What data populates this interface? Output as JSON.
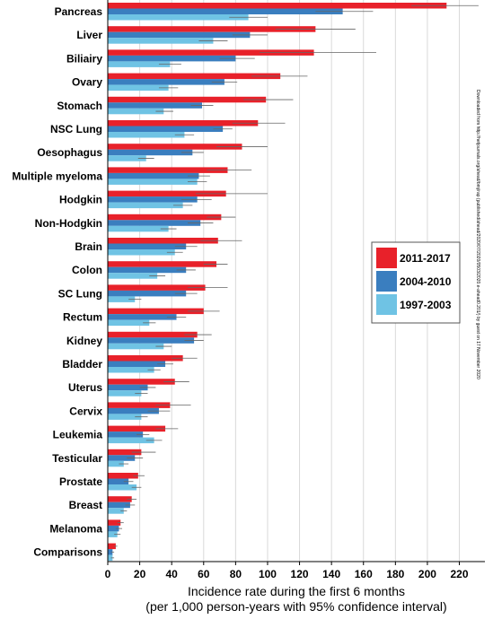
{
  "chart_data": {
    "type": "bar",
    "orientation": "horizontal",
    "categories": [
      "Pancreas",
      "Liver",
      "Biliairy",
      "Ovary",
      "Stomach",
      "NSC Lung",
      "Oesophagus",
      "Multiple myeloma",
      "Hodgkin",
      "Non-Hodgkin",
      "Brain",
      "Colon",
      "SC Lung",
      "Rectum",
      "Kidney",
      "Bladder",
      "Uterus",
      "Cervix",
      "Leukemia",
      "Testicular",
      "Prostate",
      "Breast",
      "Melanoma",
      "Comparisons"
    ],
    "series": [
      {
        "name": "2011-2017",
        "color": "#e8212a",
        "values": [
          212,
          130,
          129,
          108,
          99,
          94,
          84,
          75,
          74,
          71,
          69,
          68,
          61,
          60,
          56,
          47,
          42,
          39,
          36,
          21,
          19,
          15,
          8,
          5
        ],
        "ci_low": [
          190,
          105,
          95,
          90,
          85,
          78,
          68,
          62,
          55,
          62,
          58,
          60,
          50,
          50,
          48,
          40,
          35,
          30,
          30,
          15,
          16,
          12,
          6,
          4
        ],
        "ci_high": [
          232,
          155,
          168,
          125,
          116,
          111,
          100,
          90,
          100,
          80,
          84,
          75,
          75,
          70,
          65,
          56,
          51,
          52,
          44,
          30,
          23,
          18,
          10,
          6
        ]
      },
      {
        "name": "2004-2010",
        "color": "#3a7ebf",
        "values": [
          147,
          89,
          80,
          73,
          59,
          72,
          53,
          57,
          56,
          58,
          49,
          49,
          49,
          43,
          54,
          36,
          25,
          32,
          22,
          17,
          13,
          14,
          7,
          3
        ],
        "ci_low": [
          130,
          78,
          70,
          65,
          52,
          66,
          46,
          50,
          46,
          50,
          42,
          43,
          42,
          37,
          48,
          31,
          20,
          25,
          18,
          12,
          10,
          11,
          5,
          2
        ],
        "ci_high": [
          166,
          100,
          92,
          81,
          66,
          78,
          60,
          64,
          65,
          66,
          56,
          55,
          56,
          49,
          60,
          41,
          30,
          39,
          26,
          22,
          16,
          17,
          9,
          4
        ]
      },
      {
        "name": "1997-2003",
        "color": "#6fc3e4",
        "values": [
          88,
          66,
          39,
          38,
          35,
          48,
          24,
          56,
          47,
          38,
          42,
          31,
          17,
          26,
          35,
          29,
          21,
          21,
          29,
          10,
          18,
          10,
          6,
          3
        ],
        "ci_low": [
          76,
          57,
          32,
          32,
          30,
          42,
          19,
          50,
          41,
          33,
          37,
          26,
          13,
          22,
          30,
          25,
          17,
          17,
          24,
          7,
          15,
          8,
          4,
          2
        ],
        "ci_high": [
          100,
          75,
          46,
          44,
          41,
          54,
          29,
          62,
          53,
          43,
          47,
          36,
          21,
          30,
          40,
          33,
          25,
          25,
          34,
          13,
          21,
          12,
          8,
          4
        ]
      }
    ],
    "xlim": [
      0,
      236
    ],
    "xticks": [
      0,
      20,
      40,
      60,
      80,
      100,
      120,
      140,
      160,
      180,
      200,
      220
    ],
    "xlabel_line1": "Incidence rate during the first 6 months",
    "xlabel_line2": "(per 1,000 person-years with 95% confidence interval)",
    "grid": "vertical",
    "legend_placement": "right-middle"
  },
  "side_note": "Downloaded from http://hetjournals.org/ahead/bmj/rap (published/ahead/2020/07/2020/0503/2020.e-ahead0.201/) by guest on 17 November 2020"
}
